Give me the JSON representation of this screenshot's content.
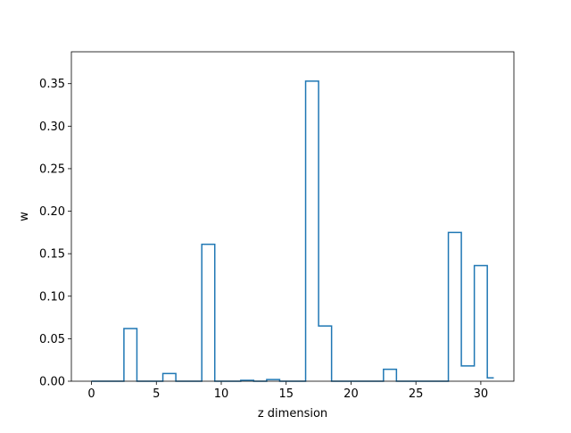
{
  "chart_data": {
    "type": "step",
    "title": "",
    "xlabel": "z dimension",
    "ylabel": "w",
    "xlim": [
      -1.55,
      32.55
    ],
    "ylim": [
      0,
      0.3875
    ],
    "xticks": [
      0,
      5,
      10,
      15,
      20,
      25,
      30
    ],
    "xtick_labels": [
      "0",
      "5",
      "10",
      "15",
      "20",
      "25",
      "30"
    ],
    "yticks": [
      0.0,
      0.05,
      0.1,
      0.15,
      0.2,
      0.25,
      0.3,
      0.35
    ],
    "ytick_labels": [
      "0.00",
      "0.05",
      "0.10",
      "0.15",
      "0.20",
      "0.25",
      "0.30",
      "0.35"
    ],
    "grid": false,
    "step_where": "mid",
    "series": [
      {
        "color": "#1f77b4",
        "x": [
          0,
          1,
          2,
          3,
          4,
          5,
          6,
          7,
          8,
          9,
          10,
          11,
          12,
          13,
          14,
          15,
          16,
          17,
          18,
          19,
          20,
          21,
          22,
          23,
          24,
          25,
          26,
          27,
          28,
          29,
          30,
          31
        ],
        "values": [
          0.0,
          0.0,
          0.0,
          0.062,
          0.0,
          0.0,
          0.009,
          0.0,
          0.0,
          0.161,
          0.0,
          0.0,
          0.001,
          0.0,
          0.002,
          0.0,
          0.0,
          0.353,
          0.065,
          0.0,
          0.0,
          0.0,
          0.0,
          0.014,
          0.0,
          0.0,
          0.0,
          0.0,
          0.175,
          0.018,
          0.136,
          0.004
        ]
      }
    ]
  }
}
